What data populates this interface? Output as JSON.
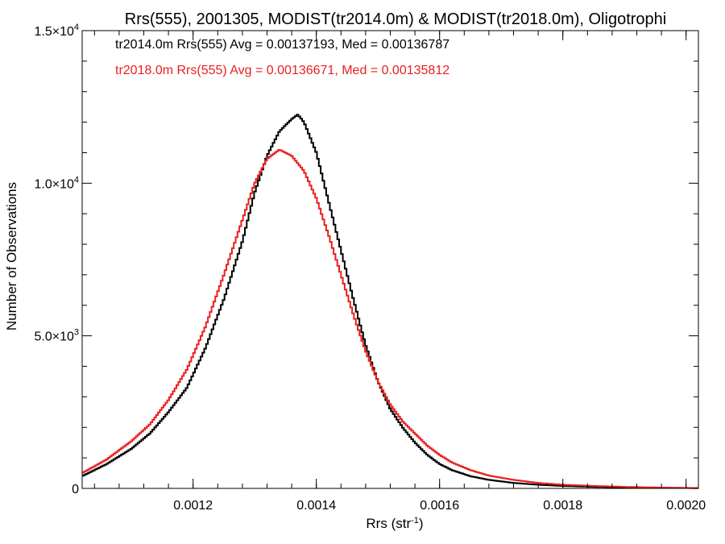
{
  "chart_data": {
    "type": "line",
    "title": "Rrs(555), 2001305, MODIST(tr2014.0m) & MODIST(tr2018.0m), Oligotrophi",
    "xlabel_main": "Rrs (str",
    "xlabel_sup": "-1",
    "xlabel_close": ")",
    "ylabel": "Number of Observations",
    "xlim": [
      0.00102,
      0.00202
    ],
    "ylim": [
      0,
      15000
    ],
    "xticks": [
      {
        "value": 0.0012,
        "label": "0.0012"
      },
      {
        "value": 0.0014,
        "label": "0.0014"
      },
      {
        "value": 0.0016,
        "label": "0.0016"
      },
      {
        "value": 0.0018,
        "label": "0.0018"
      },
      {
        "value": 0.002,
        "label": "0.0020"
      }
    ],
    "yticks": [
      {
        "value": 0,
        "mantissa": "0",
        "exp": ""
      },
      {
        "value": 5000,
        "mantissa": "5.0×10",
        "exp": "3"
      },
      {
        "value": 10000,
        "mantissa": "1.0×10",
        "exp": "4"
      },
      {
        "value": 15000,
        "mantissa": "1.5×10",
        "exp": "4"
      }
    ],
    "annotations": [
      "tr2014.0m Rrs(555) Avg = 0.00137193, Med = 0.00136787",
      "tr2018.0m Rrs(555) Avg = 0.00136671, Med = 0.00135812"
    ],
    "series": [
      {
        "color": "#000000",
        "x": [
          0.00102,
          0.00106,
          0.0011,
          0.00113,
          0.00116,
          0.00119,
          0.00122,
          0.00125,
          0.00128,
          0.0013,
          0.00132,
          0.00134,
          0.00136,
          0.00137,
          0.00138,
          0.0014,
          0.00142,
          0.00144,
          0.00146,
          0.00148,
          0.0015,
          0.00152,
          0.00154,
          0.00156,
          0.00158,
          0.0016,
          0.00162,
          0.00165,
          0.00168,
          0.00172,
          0.00176,
          0.0018,
          0.00185,
          0.0019,
          0.00195,
          0.00202
        ],
        "y": [
          400,
          800,
          1300,
          1800,
          2500,
          3300,
          4600,
          6200,
          8100,
          9700,
          10900,
          11700,
          12100,
          12250,
          12000,
          11000,
          9400,
          7800,
          6200,
          4700,
          3500,
          2600,
          2000,
          1500,
          1100,
          800,
          600,
          400,
          280,
          180,
          120,
          80,
          50,
          30,
          20,
          10
        ]
      },
      {
        "color": "#e8201e",
        "x": [
          0.00102,
          0.00106,
          0.0011,
          0.00113,
          0.00116,
          0.00119,
          0.00122,
          0.00125,
          0.00128,
          0.0013,
          0.00132,
          0.00134,
          0.00136,
          0.00138,
          0.0014,
          0.00142,
          0.00144,
          0.00146,
          0.00148,
          0.0015,
          0.00152,
          0.00154,
          0.00156,
          0.00158,
          0.0016,
          0.00162,
          0.00165,
          0.00168,
          0.00172,
          0.00176,
          0.0018,
          0.00185,
          0.0019,
          0.00195,
          0.00202
        ],
        "y": [
          500,
          950,
          1550,
          2100,
          2900,
          3900,
          5300,
          7000,
          8800,
          10000,
          10800,
          11100,
          10900,
          10400,
          9500,
          8300,
          7000,
          5700,
          4500,
          3500,
          2750,
          2200,
          1800,
          1400,
          1100,
          850,
          600,
          420,
          280,
          180,
          120,
          80,
          50,
          30,
          10
        ]
      }
    ]
  }
}
